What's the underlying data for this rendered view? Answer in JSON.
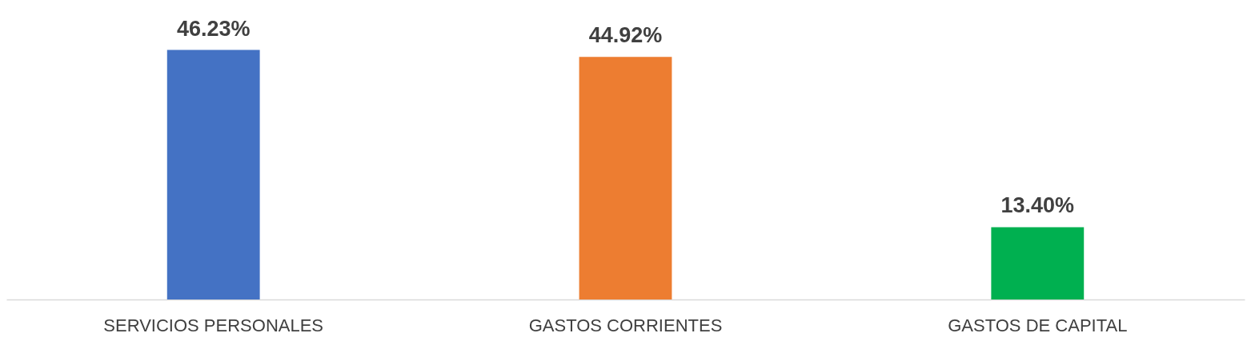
{
  "chart_data": {
    "type": "bar",
    "categories": [
      "SERVICIOS PERSONALES",
      "GASTOS CORRIENTES",
      "GASTOS DE CAPITAL"
    ],
    "values": [
      46.23,
      44.92,
      13.4
    ],
    "colors": [
      "#4472c4",
      "#ed7d31",
      "#00b050"
    ],
    "value_labels": [
      "46.23%",
      "44.92%",
      "13.40%"
    ],
    "grid": false
  }
}
